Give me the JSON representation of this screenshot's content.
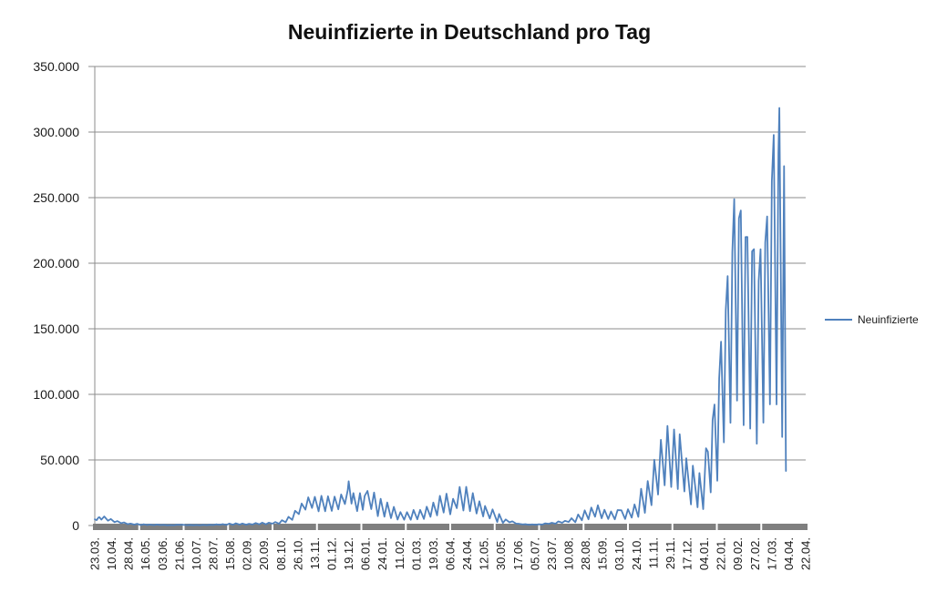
{
  "chart": {
    "title": "Neuinfizierte in Deutschland pro Tag",
    "legend_label": "Neuinfizierte"
  },
  "colors": {
    "series": "#4F81BD",
    "gridline": "#8C8C8C",
    "axis_line": "#8C8C8C",
    "axis_band": "#7F7F7F",
    "text": "#1a1a1a",
    "background": "#ffffff"
  },
  "chart_data": {
    "type": "line",
    "title": "Neuinfizierte in Deutschland pro Tag",
    "series_name": "Neuinfizierte",
    "legend_position": "right",
    "grid": true,
    "ylim": [
      0,
      350000
    ],
    "y_tick_step": 50000,
    "y_tick_labels": [
      "0",
      "50.000",
      "100.000",
      "150.000",
      "200.000",
      "250.000",
      "300.000",
      "350.000"
    ],
    "x_label_every_n_points": 18,
    "x_total_points": 756,
    "x_tick_labels": [
      "23.03.",
      "10.04.",
      "28.04.",
      "16.05.",
      "03.06.",
      "21.06.",
      "10.07.",
      "28.07.",
      "15.08.",
      "02.09.",
      "20.09.",
      "08.10.",
      "26.10.",
      "13.11.",
      "01.12.",
      "19.12.",
      "06.01.",
      "24.01.",
      "11.02.",
      "01.03.",
      "19.03.",
      "06.04.",
      "24.04.",
      "12.05.",
      "30.05.",
      "17.06.",
      "05.07.",
      "23.07.",
      "10.08.",
      "28.08.",
      "15.09.",
      "03.10.",
      "24.10.",
      "11.11.",
      "29.11.",
      "17.12.",
      "04.01.",
      "22.01.",
      "09.02.",
      "27.02.",
      "17.03.",
      "04.04.",
      "22.04."
    ],
    "points": [
      [
        0,
        4764
      ],
      [
        2,
        4118
      ],
      [
        4,
        6153
      ],
      [
        5,
        6294
      ],
      [
        7,
        4450
      ],
      [
        10,
        6922
      ],
      [
        14,
        3677
      ],
      [
        17,
        4974
      ],
      [
        21,
        2537
      ],
      [
        24,
        3380
      ],
      [
        28,
        1775
      ],
      [
        31,
        2352
      ],
      [
        35,
        1018
      ],
      [
        38,
        1478
      ],
      [
        42,
        679
      ],
      [
        45,
        1284
      ],
      [
        49,
        357
      ],
      [
        52,
        933
      ],
      [
        56,
        342
      ],
      [
        58,
        797
      ],
      [
        63,
        289
      ],
      [
        66,
        741
      ],
      [
        70,
        333
      ],
      [
        73,
        507
      ],
      [
        77,
        214
      ],
      [
        81,
        348
      ],
      [
        84,
        192
      ],
      [
        87,
        580
      ],
      [
        91,
        537
      ],
      [
        93,
        587
      ],
      [
        98,
        262
      ],
      [
        101,
        466
      ],
      [
        105,
        219
      ],
      [
        108,
        442
      ],
      [
        112,
        159
      ],
      [
        115,
        534
      ],
      [
        119,
        249
      ],
      [
        122,
        569
      ],
      [
        126,
        340
      ],
      [
        129,
        902
      ],
      [
        133,
        509
      ],
      [
        136,
        1045
      ],
      [
        140,
        436
      ],
      [
        143,
        1445
      ],
      [
        147,
        561
      ],
      [
        150,
        1707
      ],
      [
        154,
        711
      ],
      [
        157,
        1507
      ],
      [
        161,
        610
      ],
      [
        164,
        1311
      ],
      [
        168,
        814
      ],
      [
        171,
        1892
      ],
      [
        175,
        927
      ],
      [
        178,
        2194
      ],
      [
        182,
        922
      ],
      [
        185,
        2143
      ],
      [
        189,
        1411
      ],
      [
        192,
        2673
      ],
      [
        196,
        1382
      ],
      [
        199,
        4058
      ],
      [
        203,
        2467
      ],
      [
        206,
        6638
      ],
      [
        210,
        4325
      ],
      [
        213,
        11242
      ],
      [
        217,
        8685
      ],
      [
        220,
        16774
      ],
      [
        224,
        12097
      ],
      [
        227,
        21506
      ],
      [
        231,
        13363
      ],
      [
        234,
        21866
      ],
      [
        238,
        10824
      ],
      [
        241,
        22609
      ],
      [
        245,
        10864
      ],
      [
        248,
        22268
      ],
      [
        252,
        11169
      ],
      [
        255,
        22046
      ],
      [
        259,
        12332
      ],
      [
        262,
        23679
      ],
      [
        266,
        16362
      ],
      [
        269,
        26923
      ],
      [
        270,
        33777
      ],
      [
        273,
        16643
      ],
      [
        275,
        24740
      ],
      [
        279,
        10976
      ],
      [
        282,
        24700
      ],
      [
        285,
        12000
      ],
      [
        287,
        22500
      ],
      [
        290,
        26391
      ],
      [
        294,
        12497
      ],
      [
        297,
        25164
      ],
      [
        301,
        7141
      ],
      [
        304,
        20398
      ],
      [
        308,
        6729
      ],
      [
        311,
        17553
      ],
      [
        315,
        5608
      ],
      [
        318,
        14211
      ],
      [
        322,
        4535
      ],
      [
        325,
        10237
      ],
      [
        329,
        4426
      ],
      [
        332,
        10207
      ],
      [
        336,
        4369
      ],
      [
        339,
        11869
      ],
      [
        343,
        4732
      ],
      [
        346,
        11912
      ],
      [
        350,
        5011
      ],
      [
        353,
        14356
      ],
      [
        357,
        6604
      ],
      [
        360,
        17504
      ],
      [
        364,
        7709
      ],
      [
        367,
        22657
      ],
      [
        371,
        9872
      ],
      [
        374,
        24300
      ],
      [
        378,
        8497
      ],
      [
        381,
        20407
      ],
      [
        385,
        13245
      ],
      [
        388,
        29426
      ],
      [
        392,
        11437
      ],
      [
        395,
        29518
      ],
      [
        399,
        10976
      ],
      [
        402,
        24736
      ],
      [
        406,
        9160
      ],
      [
        409,
        18485
      ],
      [
        413,
        6922
      ],
      [
        415,
        14909
      ],
      [
        420,
        5412
      ],
      [
        423,
        12298
      ],
      [
        428,
        2626
      ],
      [
        430,
        8769
      ],
      [
        434,
        1978
      ],
      [
        437,
        4640
      ],
      [
        441,
        2440
      ],
      [
        444,
        3187
      ],
      [
        448,
        1489
      ],
      [
        451,
        1330
      ],
      [
        455,
        842
      ],
      [
        458,
        1008
      ],
      [
        462,
        538
      ],
      [
        465,
        892
      ],
      [
        469,
        559
      ],
      [
        472,
        970
      ],
      [
        476,
        745
      ],
      [
        479,
        1642
      ],
      [
        483,
        1292
      ],
      [
        486,
        2089
      ],
      [
        490,
        1387
      ],
      [
        493,
        3142
      ],
      [
        497,
        2097
      ],
      [
        500,
        3539
      ],
      [
        504,
        2707
      ],
      [
        507,
        5578
      ],
      [
        511,
        2500
      ],
      [
        514,
        8400
      ],
      [
        518,
        4000
      ],
      [
        521,
        11561
      ],
      [
        525,
        4749
      ],
      [
        528,
        13715
      ],
      [
        532,
        6700
      ],
      [
        535,
        15431
      ],
      [
        539,
        5511
      ],
      [
        542,
        12000
      ],
      [
        546,
        5000
      ],
      [
        549,
        10696
      ],
      [
        553,
        4700
      ],
      [
        556,
        11780
      ],
      [
        560,
        11644
      ],
      [
        564,
        4971
      ],
      [
        567,
        12382
      ],
      [
        571,
        6000
      ],
      [
        574,
        16077
      ],
      [
        578,
        6573
      ],
      [
        581,
        28037
      ],
      [
        585,
        9658
      ],
      [
        588,
        33949
      ],
      [
        592,
        15513
      ],
      [
        595,
        50196
      ],
      [
        599,
        23607
      ],
      [
        602,
        65371
      ],
      [
        606,
        30643
      ],
      [
        609,
        75961
      ],
      [
        613,
        29364
      ],
      [
        616,
        73209
      ],
      [
        620,
        27836
      ],
      [
        622,
        69601
      ],
      [
        627,
        26000
      ],
      [
        629,
        51301
      ],
      [
        634,
        16086
      ],
      [
        636,
        45659
      ],
      [
        641,
        13908
      ],
      [
        643,
        40043
      ],
      [
        647,
        12515
      ],
      [
        650,
        58912
      ],
      [
        652,
        56335
      ],
      [
        655,
        25255
      ],
      [
        657,
        80430
      ],
      [
        659,
        92223
      ],
      [
        662,
        34145
      ],
      [
        664,
        112323
      ],
      [
        666,
        140160
      ],
      [
        669,
        63393
      ],
      [
        671,
        164000
      ],
      [
        673,
        190148
      ],
      [
        676,
        78318
      ],
      [
        678,
        208498
      ],
      [
        680,
        248838
      ],
      [
        683,
        95267
      ],
      [
        685,
        234250
      ],
      [
        687,
        240172
      ],
      [
        690,
        76465
      ],
      [
        692,
        219972
      ],
      [
        694,
        220048
      ],
      [
        697,
        73867
      ],
      [
        699,
        209052
      ],
      [
        701,
        210743
      ],
      [
        704,
        62349
      ],
      [
        706,
        186406
      ],
      [
        708,
        210673
      ],
      [
        711,
        78428
      ],
      [
        713,
        215854
      ],
      [
        715,
        235626
      ],
      [
        718,
        92378
      ],
      [
        720,
        262593
      ],
      [
        722,
        297845
      ],
      [
        725,
        92314
      ],
      [
        727,
        283707
      ],
      [
        728,
        318387
      ],
      [
        731,
        67501
      ],
      [
        733,
        274000
      ],
      [
        735,
        41600
      ]
    ]
  }
}
